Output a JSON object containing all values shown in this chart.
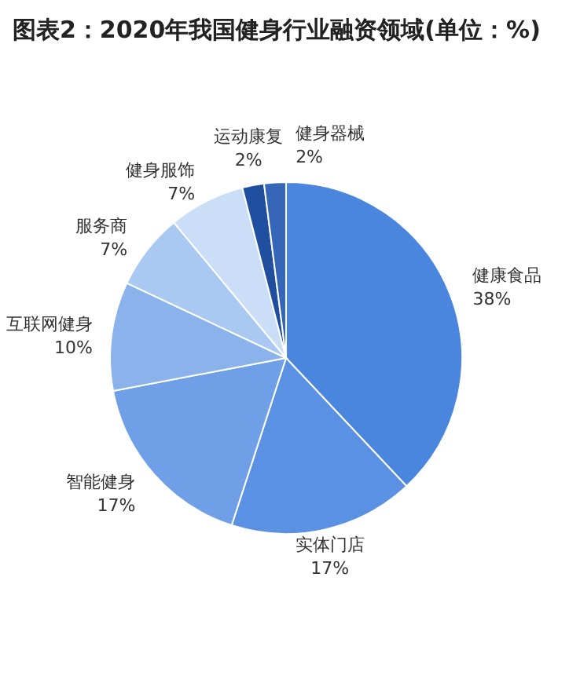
{
  "chart_data": {
    "type": "pie",
    "title": "图表2：2020年我国健身行业融资领域(单位：%)",
    "categories": [
      "健康食品",
      "实体门店",
      "智能健身",
      "互联网健身",
      "服务商",
      "健身服饰",
      "运动康复",
      "健身器械"
    ],
    "values": [
      38,
      17,
      17,
      10,
      7,
      7,
      2,
      2
    ],
    "colors": [
      "#4a86de",
      "#5a91e3",
      "#6e9fe7",
      "#8ab3ec",
      "#a9c8f2",
      "#cadef7",
      "#1f4f9e",
      "#3566b8"
    ],
    "value_labels": [
      "38%",
      "17%",
      "17%",
      "10%",
      "7%",
      "7%",
      "2%",
      "2%"
    ],
    "legend": false
  }
}
